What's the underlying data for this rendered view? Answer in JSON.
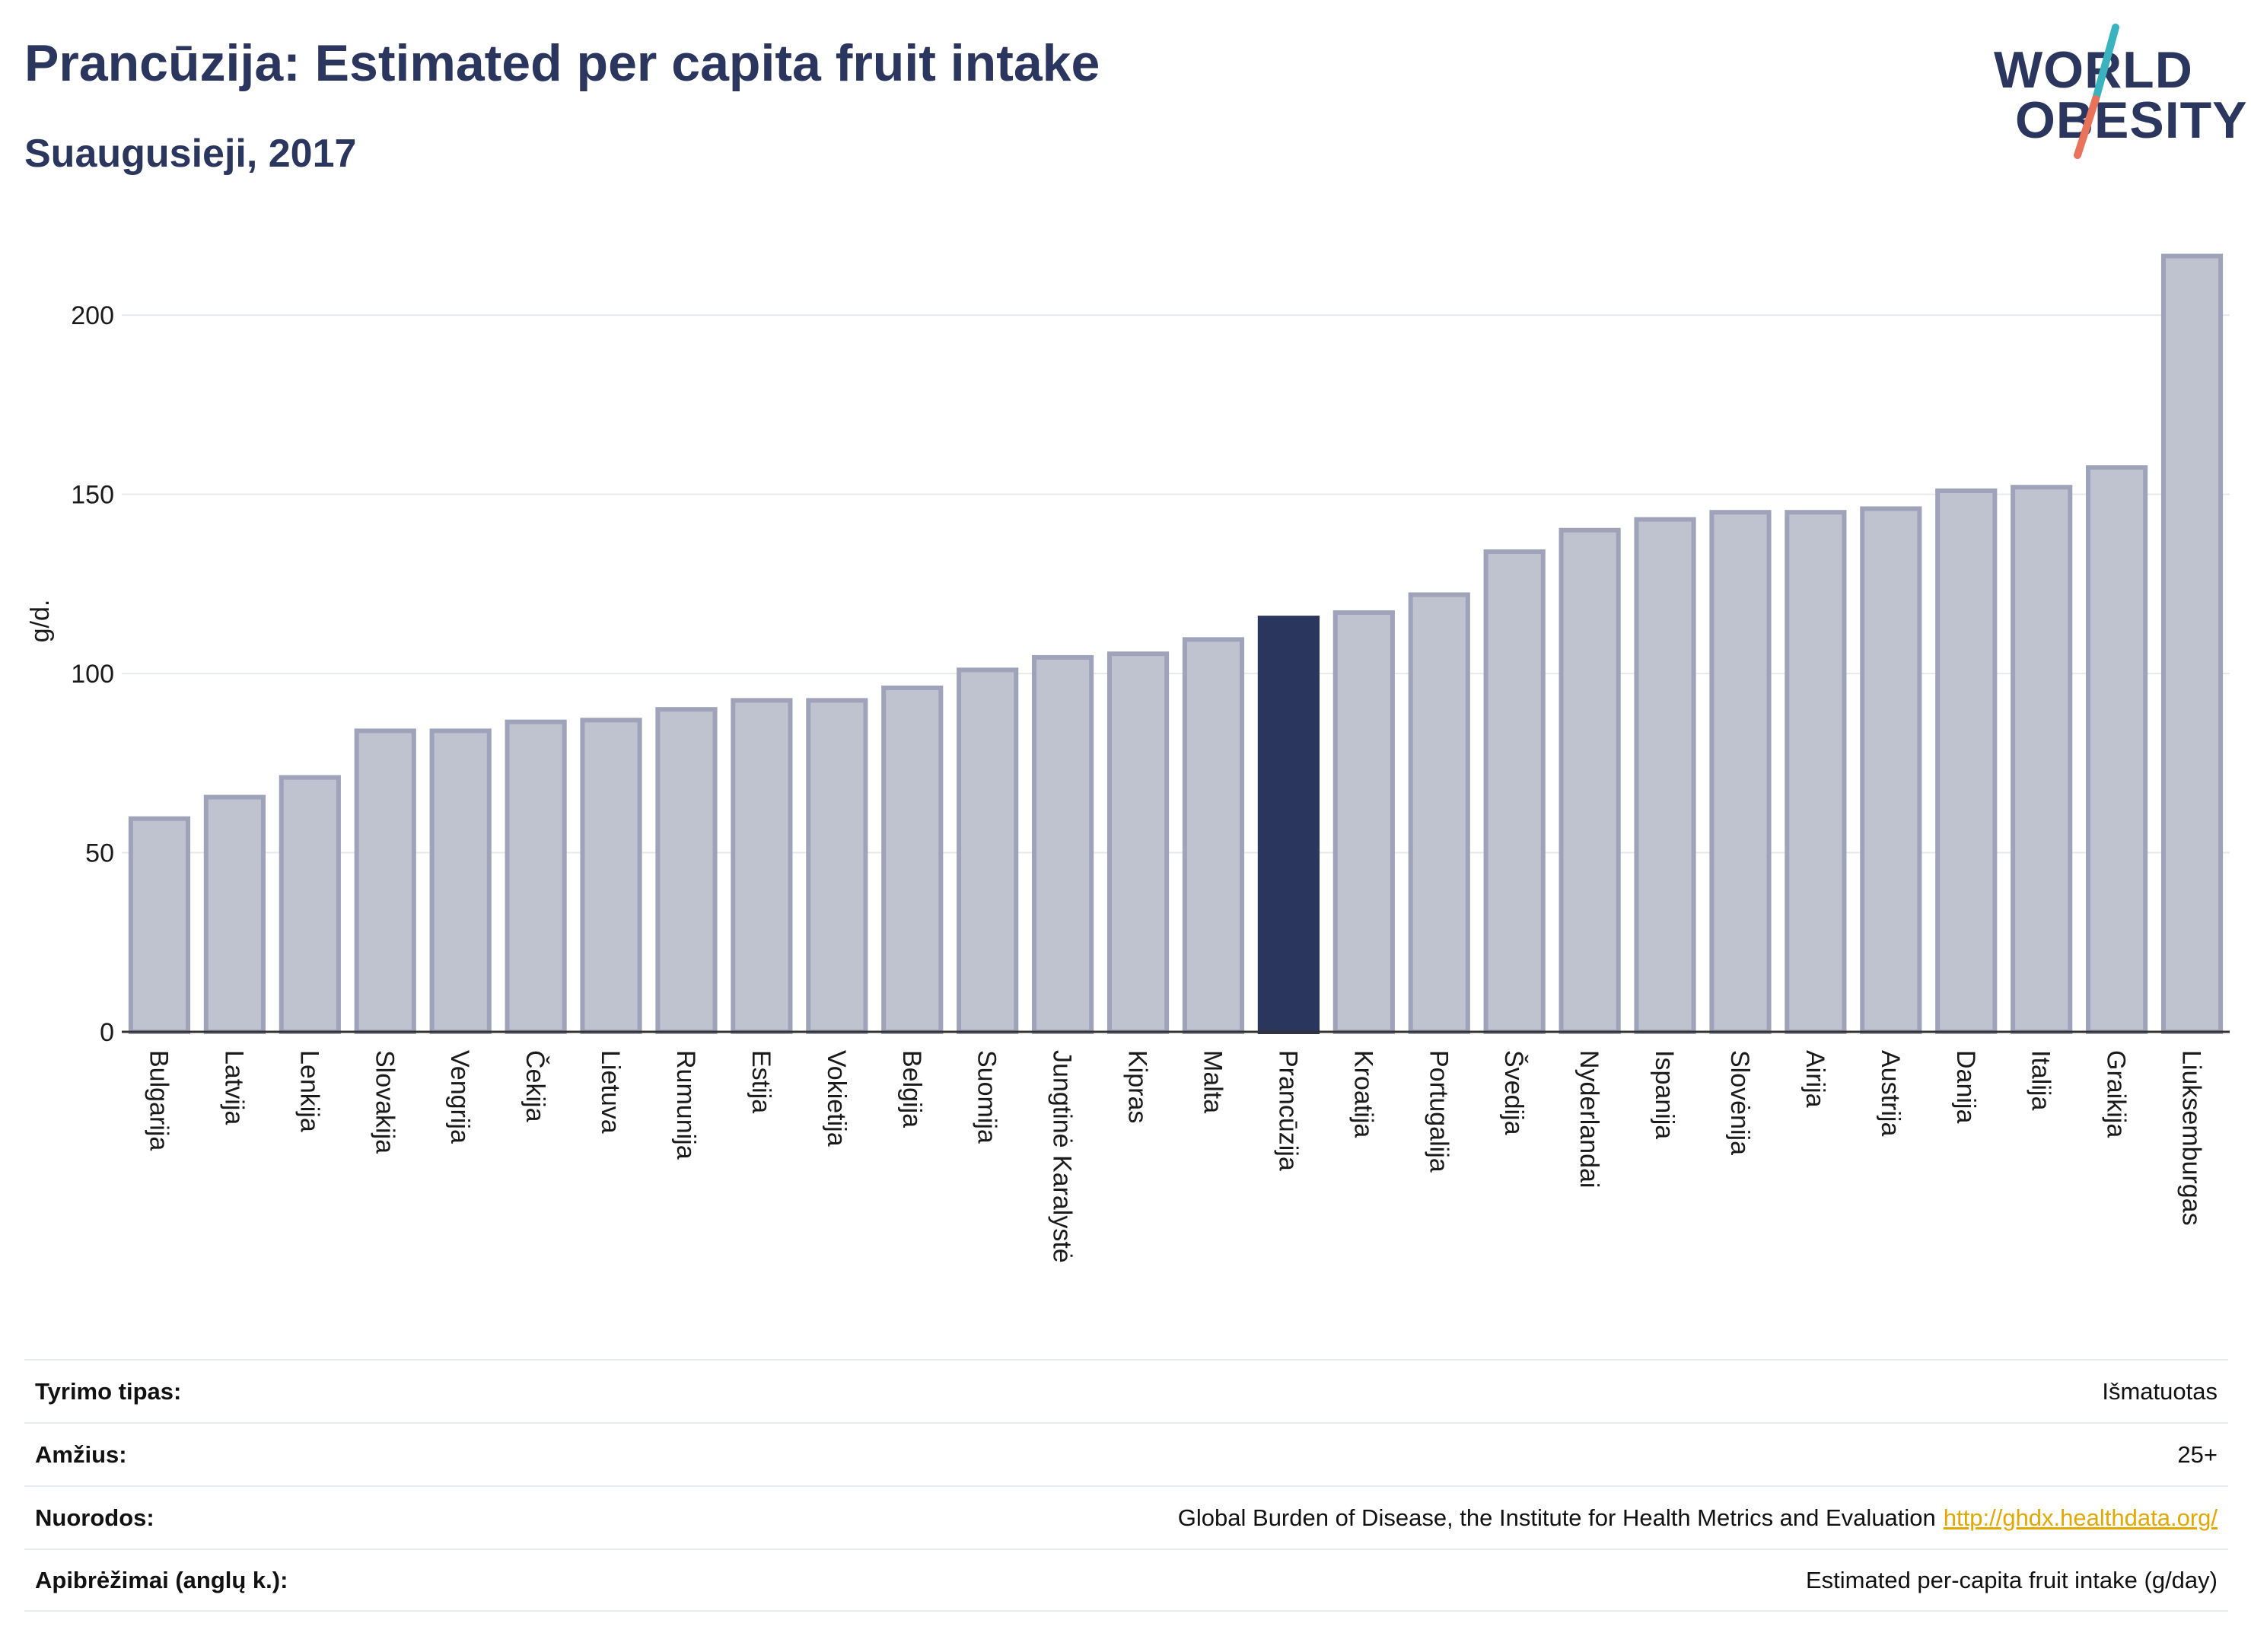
{
  "header": {
    "title": "Prancūzija: Estimated per capita fruit intake",
    "subtitle": "Suaugusieji, 2017"
  },
  "logo": {
    "line1": "WORLD",
    "line2": "OBESITY",
    "colors": {
      "text": "#2b365f",
      "slash_top": "#3bb3bf",
      "slash_bottom": "#e8735a"
    }
  },
  "chart_data": {
    "type": "bar",
    "ylabel": "g/d.",
    "ylim": [
      0,
      220
    ],
    "yticks": [
      0,
      50,
      100,
      150,
      200
    ],
    "grid": true,
    "categories": [
      "Bulgarija",
      "Latvija",
      "Lenkija",
      "Slovakija",
      "Vengrija",
      "Čekija",
      "Lietuva",
      "Rumunija",
      "Estija",
      "Vokietija",
      "Belgija",
      "Suomija",
      "Jungtinė Karalystė",
      "Kipras",
      "Malta",
      "Prancūzija",
      "Kroatija",
      "Portugalija",
      "Švedija",
      "Nyderlandai",
      "Ispanija",
      "Slovėnija",
      "Airija",
      "Austrija",
      "Danija",
      "Italija",
      "Graikija",
      "Liuksemburgas"
    ],
    "values": [
      59.5,
      65.5,
      71,
      84,
      84,
      86.5,
      87,
      90,
      92.5,
      92.5,
      96,
      101,
      104.5,
      105.5,
      109.5,
      115.5,
      117,
      122,
      134,
      140,
      143,
      145,
      145,
      146,
      151,
      152,
      157.5,
      216.5
    ],
    "highlight": "Prancūzija",
    "colors": {
      "bar": "#bfc2cf",
      "bar_border": "#9ea3ba",
      "highlight": "#2b365f"
    }
  },
  "info": [
    {
      "label": "Tyrimo tipas:",
      "value": "Išmatuotas"
    },
    {
      "label": "Amžius:",
      "value": "25+"
    },
    {
      "label": "Nuorodos:",
      "value": "Global Burden of Disease, the Institute for Health Metrics and Evaluation",
      "link": "http://ghdx.healthdata.org/"
    },
    {
      "label": "Apibrėžimai (anglų k.):",
      "value": "Estimated per-capita fruit intake (g/day)"
    }
  ]
}
